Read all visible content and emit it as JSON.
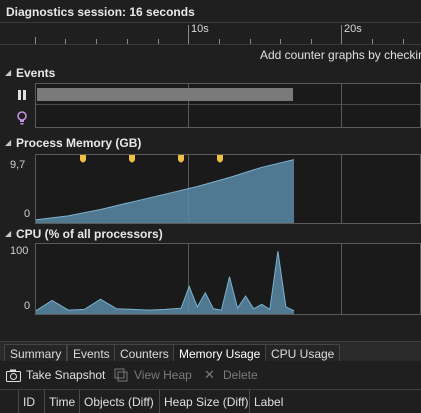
{
  "session": {
    "title": "Diagnostics session: 16 seconds"
  },
  "ruler": {
    "ticks": [
      "10s",
      "20s"
    ]
  },
  "hint": {
    "text": "Add counter graphs by checkin"
  },
  "sections": {
    "events": {
      "label": "Events"
    },
    "memory": {
      "label": "Process Memory (GB)",
      "y_max": "9,7",
      "y_min": "0"
    },
    "cpu": {
      "label": "CPU (% of all processors)",
      "y_max": "100",
      "y_min": "0"
    }
  },
  "tabs": [
    {
      "label": "Summary"
    },
    {
      "label": "Events"
    },
    {
      "label": "Counters"
    },
    {
      "label": "Memory Usage"
    },
    {
      "label": "CPU Usage"
    }
  ],
  "toolbar": {
    "take_snapshot": "Take Snapshot",
    "view_heap": "View Heap",
    "delete": "Delete"
  },
  "grid": {
    "columns": [
      "ID",
      "Time",
      "Objects (Diff)",
      "Heap Size (Diff)",
      "Label"
    ]
  },
  "colors": {
    "chart_fill": "#5b8aa6",
    "chart_line": "#7ab2d0",
    "snapshot_marker": "#f0c040",
    "event_bar": "#7a7a7a",
    "hint_icon": "#c890e0"
  },
  "chart_data": [
    {
      "type": "area",
      "ylabel": "Process Memory (GB)",
      "ylim": [
        0,
        9.7
      ],
      "x": [
        0,
        2,
        4,
        6,
        8,
        10,
        12,
        14,
        16
      ],
      "values": [
        0.2,
        0.8,
        1.8,
        3.0,
        4.2,
        5.4,
        6.8,
        8.4,
        9.6
      ]
    },
    {
      "type": "area",
      "ylabel": "CPU (% of all processors)",
      "ylim": [
        0,
        100
      ],
      "x": [
        0,
        1,
        2,
        3,
        4,
        5,
        6,
        7,
        8,
        9,
        9.5,
        10,
        10.5,
        11,
        11.5,
        12,
        12.5,
        13,
        13.5,
        14,
        14.5,
        15,
        15.5,
        16
      ],
      "values": [
        2,
        18,
        3,
        4,
        20,
        5,
        4,
        3,
        4,
        6,
        40,
        8,
        30,
        5,
        3,
        55,
        6,
        25,
        5,
        12,
        4,
        95,
        8,
        2
      ]
    }
  ]
}
